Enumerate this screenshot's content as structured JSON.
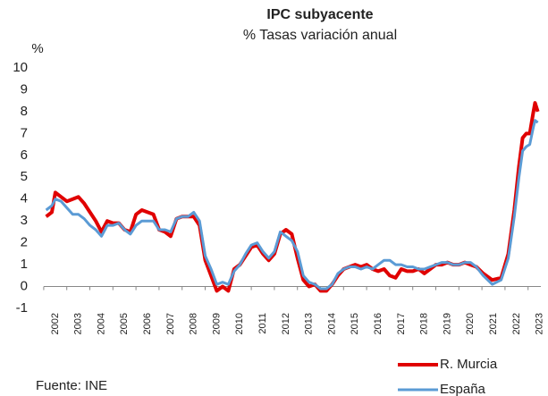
{
  "chart_data": {
    "type": "line",
    "title": "IPC subyacente",
    "subtitle": "% Tasas variación anual",
    "y_label": "%",
    "source": "Fuente: INE",
    "x": [
      2001.6,
      2001.85,
      2002,
      2002.25,
      2002.5,
      2002.75,
      2003,
      2003.25,
      2003.5,
      2003.75,
      2004,
      2004.25,
      2004.5,
      2004.75,
      2005,
      2005.25,
      2005.5,
      2005.75,
      2006,
      2006.25,
      2006.5,
      2006.75,
      2007,
      2007.25,
      2007.5,
      2007.75,
      2008,
      2008.25,
      2008.5,
      2008.75,
      2009,
      2009.25,
      2009.5,
      2009.75,
      2010,
      2010.25,
      2010.5,
      2010.75,
      2011,
      2011.25,
      2011.5,
      2011.75,
      2012,
      2012.25,
      2012.5,
      2012.75,
      2013,
      2013.25,
      2013.5,
      2013.75,
      2014,
      2014.25,
      2014.5,
      2014.75,
      2015,
      2015.25,
      2015.5,
      2015.75,
      2016,
      2016.25,
      2016.5,
      2016.75,
      2017,
      2017.25,
      2017.5,
      2017.75,
      2018,
      2018.25,
      2018.5,
      2018.75,
      2019,
      2019.25,
      2019.5,
      2019.75,
      2020,
      2020.25,
      2020.55,
      2020.94,
      2021.33,
      2021.64,
      2021.9,
      2022.1,
      2022.26,
      2022.42,
      2022.57,
      2022.73,
      2022.8,
      2022.92
    ],
    "series": [
      {
        "name": "R. Murcia",
        "color": "#e00000",
        "values": [
          3.2,
          3.4,
          4.3,
          4.1,
          3.9,
          4.0,
          4.1,
          3.8,
          3.4,
          3.0,
          2.5,
          3.0,
          2.9,
          2.9,
          2.6,
          2.5,
          3.3,
          3.5,
          3.4,
          3.3,
          2.6,
          2.5,
          2.3,
          3.1,
          3.2,
          3.2,
          3.2,
          2.8,
          1.2,
          0.5,
          -0.2,
          0.0,
          -0.2,
          0.8,
          1.0,
          1.4,
          1.8,
          1.9,
          1.5,
          1.2,
          1.5,
          2.4,
          2.6,
          2.4,
          1.3,
          0.3,
          0.0,
          0.1,
          -0.2,
          -0.2,
          0.1,
          0.5,
          0.8,
          0.9,
          1.0,
          0.9,
          1.0,
          0.8,
          0.7,
          0.8,
          0.5,
          0.4,
          0.8,
          0.7,
          0.7,
          0.8,
          0.6,
          0.8,
          1.0,
          1.0,
          1.1,
          1.0,
          1.0,
          1.1,
          1.0,
          0.9,
          0.6,
          0.3,
          0.4,
          1.5,
          3.5,
          5.5,
          6.8,
          7.0,
          7.0,
          8.0,
          8.4,
          8.0
        ]
      },
      {
        "name": "España",
        "color": "#5b9bd5",
        "values": [
          3.5,
          3.7,
          4.0,
          3.9,
          3.6,
          3.3,
          3.3,
          3.1,
          2.8,
          2.6,
          2.3,
          2.8,
          2.8,
          2.9,
          2.6,
          2.4,
          2.8,
          3.0,
          3.0,
          3.0,
          2.6,
          2.6,
          2.5,
          3.1,
          3.2,
          3.2,
          3.4,
          3.0,
          1.4,
          0.8,
          0.1,
          0.2,
          0.1,
          0.7,
          1.0,
          1.5,
          1.9,
          2.0,
          1.6,
          1.3,
          1.6,
          2.5,
          2.3,
          2.1,
          1.6,
          0.5,
          0.2,
          0.1,
          -0.1,
          -0.1,
          0.1,
          0.6,
          0.8,
          0.9,
          0.9,
          0.8,
          0.9,
          0.8,
          1.0,
          1.2,
          1.2,
          1.0,
          1.0,
          0.9,
          0.9,
          0.8,
          0.8,
          0.9,
          1.0,
          1.1,
          1.1,
          1.0,
          1.0,
          1.1,
          1.1,
          0.9,
          0.5,
          0.1,
          0.3,
          1.3,
          3.2,
          5.0,
          6.2,
          6.4,
          6.5,
          7.3,
          7.6,
          7.5
        ]
      }
    ],
    "xlim": [
      2001.5,
      2023.05
    ],
    "xticks": [
      2002,
      2003,
      2004,
      2005,
      2006,
      2007,
      2008,
      2009,
      2010,
      2011,
      2012,
      2013,
      2014,
      2015,
      2016,
      2017,
      2018,
      2019,
      2020,
      2021,
      2022,
      2023
    ],
    "ylim": [
      -1,
      10
    ],
    "yticks": [
      -1,
      0,
      1,
      2,
      3,
      4,
      5,
      6,
      7,
      8,
      9,
      10
    ],
    "grid": false,
    "legend": "bottom-right"
  }
}
